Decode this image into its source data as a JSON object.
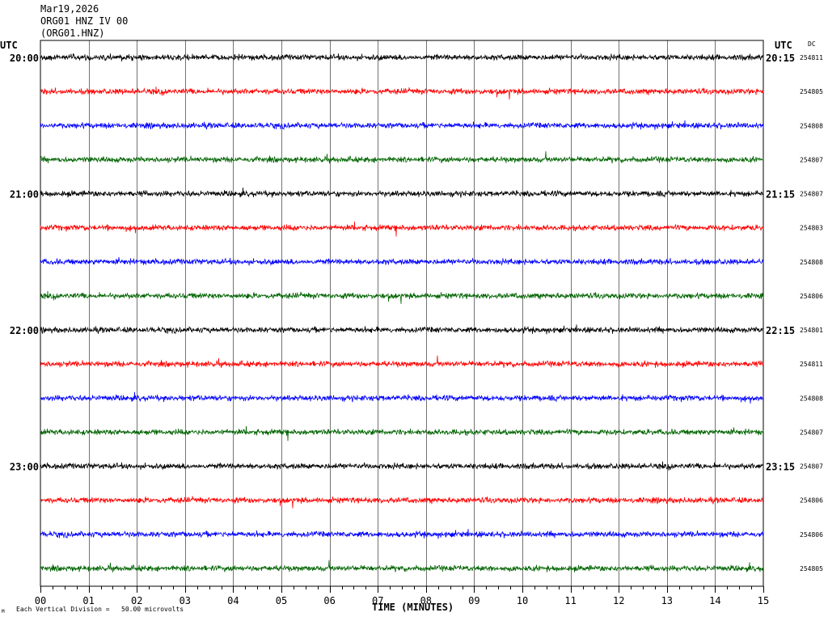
{
  "header": {
    "date": "Mar19,2026",
    "station": "ORG01 HNZ IV 00",
    "channel": "(ORG01.HNZ)"
  },
  "left_axis_title": "UTC",
  "right_axis_title": "UTC",
  "dc_title": "DC",
  "footer": {
    "scale_note": "Each Vertical Division =   50.00 microvolts",
    "corner_mark": "M"
  },
  "chart_data": {
    "type": "line",
    "title": "ORG01 HNZ IV 00",
    "xlabel": "TIME (MINUTES)",
    "xlim": [
      0,
      15
    ],
    "x_ticks": [
      "00",
      "01",
      "02",
      "03",
      "04",
      "05",
      "06",
      "07",
      "08",
      "09",
      "10",
      "11",
      "12",
      "13",
      "14",
      "15"
    ],
    "grid": true,
    "trace_colors": [
      "#000000",
      "#ff0000",
      "#0000ff",
      "#006400"
    ],
    "hour_labels_left": [
      "20:00",
      "21:00",
      "22:00",
      "23:00"
    ],
    "hour_labels_right": [
      "20:15",
      "21:15",
      "22:15",
      "23:15"
    ],
    "dc_offsets": [
      "254811",
      "254805",
      "254808",
      "254807",
      "254807",
      "254803",
      "254808",
      "254806",
      "254801",
      "254811",
      "254808",
      "254807",
      "254807",
      "254806",
      "254806",
      "254805"
    ],
    "series_count": 16
  }
}
